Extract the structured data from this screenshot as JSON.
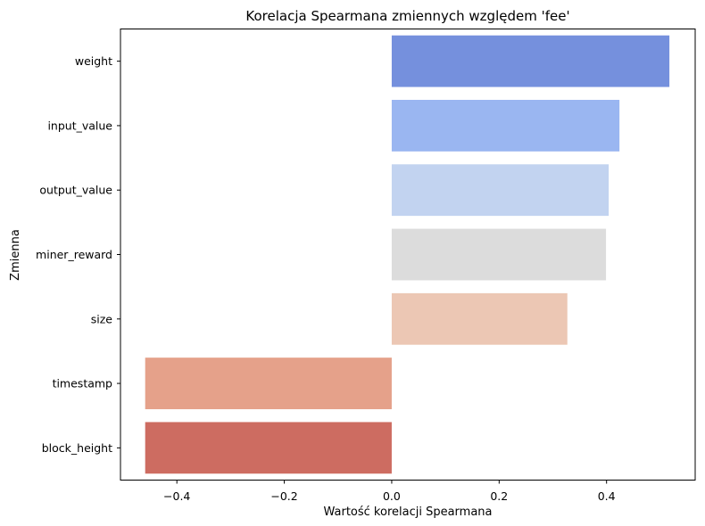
{
  "chart_data": {
    "type": "bar",
    "orientation": "horizontal",
    "title": "Korelacja Spearmana zmiennych względem 'fee'",
    "xlabel": "Wartość korelacji Spearmana",
    "ylabel": "Zmienna",
    "xlim": [
      -0.505,
      0.565
    ],
    "x_ticks": [
      -0.4,
      -0.2,
      0.0,
      0.2,
      0.4
    ],
    "x_tick_labels": [
      "−0.4",
      "−0.2",
      "0.0",
      "0.2",
      "0.4"
    ],
    "categories": [
      "weight",
      "input_value",
      "output_value",
      "miner_reward",
      "size",
      "timestamp",
      "block_height"
    ],
    "values": [
      0.517,
      0.424,
      0.404,
      0.399,
      0.327,
      -0.459,
      -0.459
    ],
    "colors": [
      "#7590dd",
      "#9ab6f1",
      "#c2d3f0",
      "#dcdcdc",
      "#ecc7b4",
      "#e5a18a",
      "#cd6c61"
    ],
    "grid": false,
    "legend": "none"
  }
}
